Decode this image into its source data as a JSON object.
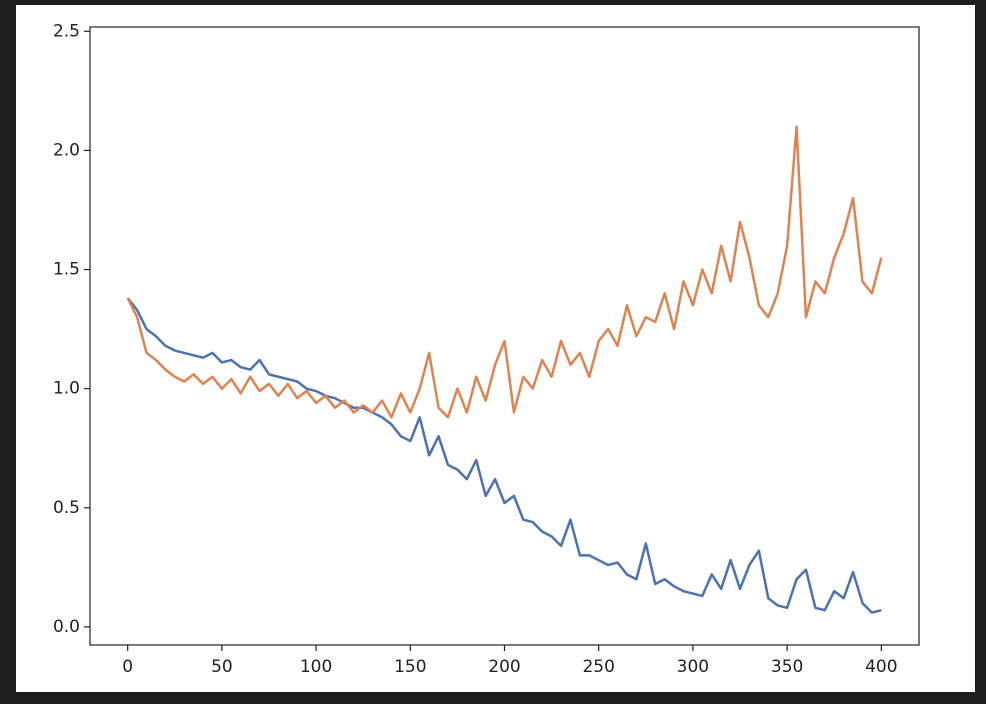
{
  "chart_data": {
    "type": "line",
    "x": [
      0,
      5,
      10,
      15,
      20,
      25,
      30,
      35,
      40,
      45,
      50,
      55,
      60,
      65,
      70,
      75,
      80,
      85,
      90,
      95,
      100,
      105,
      110,
      115,
      120,
      125,
      130,
      135,
      140,
      145,
      150,
      155,
      160,
      165,
      170,
      175,
      180,
      185,
      190,
      195,
      200,
      205,
      210,
      215,
      220,
      225,
      230,
      235,
      240,
      245,
      250,
      255,
      260,
      265,
      270,
      275,
      280,
      285,
      290,
      295,
      300,
      305,
      310,
      315,
      320,
      325,
      330,
      335,
      340,
      345,
      350,
      355,
      360,
      365,
      370,
      375,
      380,
      385,
      390,
      395,
      400
    ],
    "series": [
      {
        "color": "#4c72b0",
        "values": [
          1.38,
          1.33,
          1.25,
          1.22,
          1.18,
          1.16,
          1.15,
          1.14,
          1.13,
          1.15,
          1.11,
          1.12,
          1.09,
          1.08,
          1.12,
          1.06,
          1.05,
          1.04,
          1.03,
          1.0,
          0.99,
          0.97,
          0.96,
          0.94,
          0.92,
          0.92,
          0.9,
          0.88,
          0.85,
          0.8,
          0.78,
          0.88,
          0.72,
          0.8,
          0.68,
          0.66,
          0.62,
          0.7,
          0.55,
          0.62,
          0.52,
          0.55,
          0.45,
          0.44,
          0.4,
          0.38,
          0.34,
          0.45,
          0.3,
          0.3,
          0.28,
          0.26,
          0.27,
          0.22,
          0.2,
          0.35,
          0.18,
          0.2,
          0.17,
          0.15,
          0.14,
          0.13,
          0.22,
          0.16,
          0.28,
          0.16,
          0.26,
          0.32,
          0.12,
          0.09,
          0.08,
          0.2,
          0.24,
          0.08,
          0.07,
          0.15,
          0.12,
          0.23,
          0.1,
          0.06,
          0.07
        ]
      },
      {
        "color": "#dd8452",
        "values": [
          1.38,
          1.3,
          1.15,
          1.12,
          1.08,
          1.05,
          1.03,
          1.06,
          1.02,
          1.05,
          1.0,
          1.04,
          0.98,
          1.05,
          0.99,
          1.02,
          0.97,
          1.02,
          0.96,
          0.99,
          0.94,
          0.97,
          0.92,
          0.95,
          0.9,
          0.93,
          0.9,
          0.95,
          0.88,
          0.98,
          0.9,
          1.0,
          1.15,
          0.92,
          0.88,
          1.0,
          0.9,
          1.05,
          0.95,
          1.1,
          1.2,
          0.9,
          1.05,
          1.0,
          1.12,
          1.05,
          1.2,
          1.1,
          1.15,
          1.05,
          1.2,
          1.25,
          1.18,
          1.35,
          1.22,
          1.3,
          1.28,
          1.4,
          1.25,
          1.45,
          1.35,
          1.5,
          1.4,
          1.6,
          1.45,
          1.7,
          1.55,
          1.35,
          1.3,
          1.4,
          1.6,
          2.1,
          1.3,
          1.45,
          1.4,
          1.55,
          1.65,
          1.8,
          1.45,
          1.4,
          1.55
        ]
      }
    ],
    "xlim": [
      -20,
      420
    ],
    "xticks": [
      0,
      50,
      100,
      150,
      200,
      250,
      300,
      350,
      400
    ],
    "ylim": [
      -0.076,
      2.518
    ],
    "yticks": [
      {
        "value": 0,
        "label": "0.0"
      },
      0.5,
      {
        "value": 1,
        "label": "1.0"
      },
      1.5,
      {
        "value": 2,
        "label": "2.0"
      },
      2.5
    ]
  }
}
